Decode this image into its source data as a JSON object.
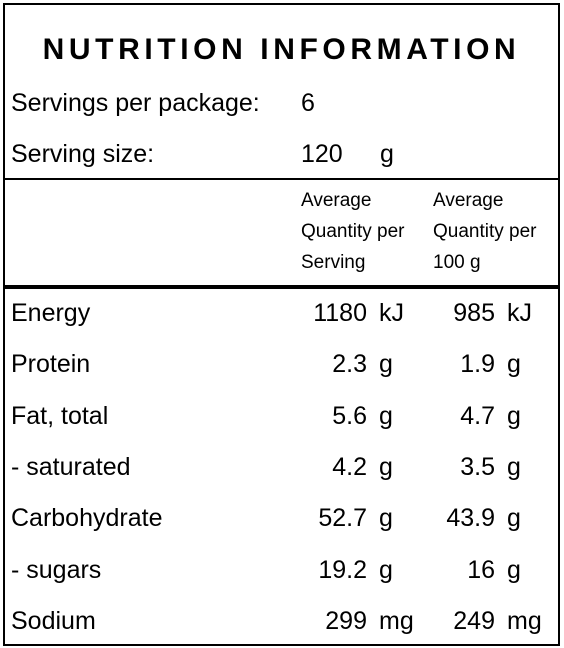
{
  "title": "NUTRITION INFORMATION",
  "servings": {
    "label": "Servings per package:",
    "value": "6"
  },
  "serving_size": {
    "label": "Serving size:",
    "value": "120",
    "unit": "g"
  },
  "columns": {
    "per_serving": [
      "Average",
      "Quantity per",
      "Serving"
    ],
    "per_100g": [
      "Average",
      "Quantity per",
      "100 g"
    ]
  },
  "rows": [
    {
      "name": "Energy",
      "serving": "1180",
      "serving_unit": "kJ",
      "per100": "985",
      "per100_unit": "kJ"
    },
    {
      "name": "Protein",
      "serving": "2.3",
      "serving_unit": "g",
      "per100": "1.9",
      "per100_unit": "g"
    },
    {
      "name": "Fat, total",
      "serving": "5.6",
      "serving_unit": "g",
      "per100": "4.7",
      "per100_unit": "g"
    },
    {
      "name": "- saturated",
      "serving": "4.2",
      "serving_unit": "g",
      "per100": "3.5",
      "per100_unit": "g"
    },
    {
      "name": "Carbohydrate",
      "serving": "52.7",
      "serving_unit": "g",
      "per100": "43.9",
      "per100_unit": "g"
    },
    {
      "name": "- sugars",
      "serving": "19.2",
      "serving_unit": "g",
      "per100": "16",
      "per100_unit": "g"
    },
    {
      "name": "Sodium",
      "serving": "299",
      "serving_unit": "mg",
      "per100": "249",
      "per100_unit": "mg"
    }
  ]
}
